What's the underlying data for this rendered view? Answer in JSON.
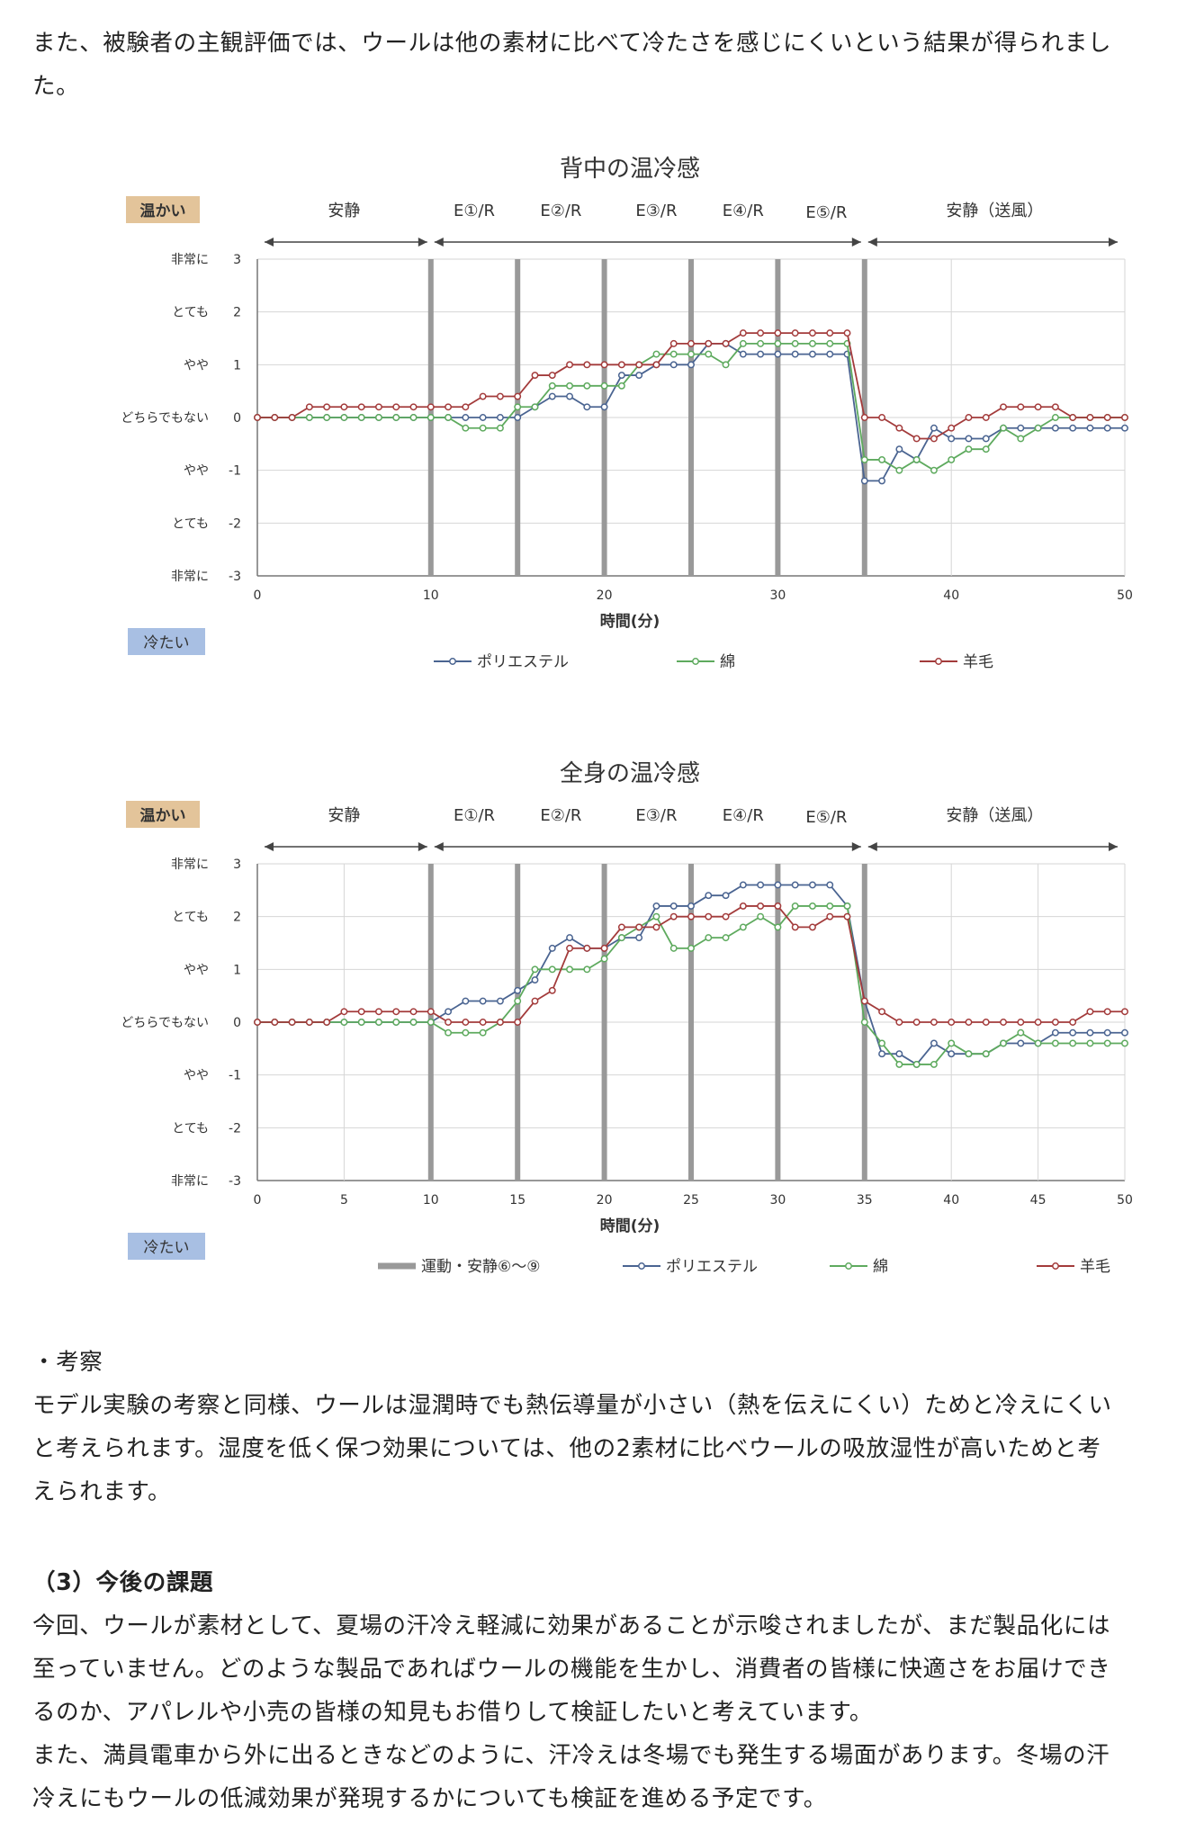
{
  "intro": {
    "lines": [
      "また、被験者の主観評価では、ウールは他の素材に比べて冷たさを感じにくいという結果が得られまし",
      "た。"
    ]
  },
  "scale_labels": {
    "warm_badge": "温かい",
    "cold_badge": "冷たい",
    "levels": [
      "非常に",
      "とても",
      "やや",
      "どちらでもない",
      "やや",
      "とても",
      "非常に"
    ]
  },
  "phases": [
    "安静",
    "E①/R",
    "E②/R",
    "E③/R",
    "E④/R",
    "E⑤/R",
    "安静（送風）"
  ],
  "colors": {
    "polyester": "#4a6491",
    "cotton": "#5eaa5e",
    "wool": "#a33b3b",
    "exercise_bar": "#999999",
    "badge_warm": "#e3c49a",
    "badge_cold": "#a8bfe3"
  },
  "chart_data": [
    {
      "type": "line",
      "title": "背中の温冷感",
      "xlabel": "時間(分)",
      "ylabel": "",
      "xlim": [
        0,
        50
      ],
      "ylim": [
        -3,
        3
      ],
      "xticks": [
        0,
        10,
        20,
        30,
        40,
        50
      ],
      "yticks": [
        3,
        2,
        1,
        0,
        -1,
        -2,
        -3
      ],
      "grid": true,
      "legend_position": "bottom",
      "exercise_markers": [
        10,
        15,
        20,
        25,
        30,
        35
      ],
      "exercise_legend": "",
      "x": [
        0,
        1,
        2,
        3,
        4,
        5,
        6,
        7,
        8,
        9,
        10,
        11,
        12,
        13,
        14,
        15,
        16,
        17,
        18,
        19,
        20,
        21,
        22,
        23,
        24,
        25,
        26,
        27,
        28,
        29,
        30,
        31,
        32,
        33,
        34,
        35,
        36,
        37,
        38,
        39,
        40,
        41,
        42,
        43,
        44,
        45,
        46,
        47,
        48,
        49,
        50
      ],
      "series": [
        {
          "name": "ポリエステル",
          "color_key": "polyester",
          "values": [
            0,
            0,
            0,
            0,
            0,
            0,
            0,
            0,
            0,
            0,
            0,
            0,
            0,
            0,
            0,
            0,
            0.2,
            0.4,
            0.4,
            0.2,
            0.2,
            0.8,
            0.8,
            1.0,
            1.0,
            1.0,
            1.4,
            1.4,
            1.2,
            1.2,
            1.2,
            1.2,
            1.2,
            1.2,
            1.2,
            -1.2,
            -1.2,
            -0.6,
            -0.8,
            -0.2,
            -0.4,
            -0.4,
            -0.4,
            -0.2,
            -0.2,
            -0.2,
            -0.2,
            -0.2,
            -0.2,
            -0.2,
            -0.2
          ]
        },
        {
          "name": "綿",
          "color_key": "cotton",
          "values": [
            0,
            0,
            0,
            0,
            0,
            0,
            0,
            0,
            0,
            0,
            0,
            0,
            -0.2,
            -0.2,
            -0.2,
            0.2,
            0.2,
            0.6,
            0.6,
            0.6,
            0.6,
            0.6,
            1.0,
            1.2,
            1.2,
            1.2,
            1.2,
            1.0,
            1.4,
            1.4,
            1.4,
            1.4,
            1.4,
            1.4,
            1.4,
            -0.8,
            -0.8,
            -1.0,
            -0.8,
            -1.0,
            -0.8,
            -0.6,
            -0.6,
            -0.2,
            -0.4,
            -0.2,
            0,
            0,
            0,
            0,
            0
          ]
        },
        {
          "name": "羊毛",
          "color_key": "wool",
          "values": [
            0,
            0,
            0,
            0.2,
            0.2,
            0.2,
            0.2,
            0.2,
            0.2,
            0.2,
            0.2,
            0.2,
            0.2,
            0.4,
            0.4,
            0.4,
            0.8,
            0.8,
            1.0,
            1.0,
            1.0,
            1.0,
            1.0,
            1.0,
            1.4,
            1.4,
            1.4,
            1.4,
            1.6,
            1.6,
            1.6,
            1.6,
            1.6,
            1.6,
            1.6,
            0,
            0,
            -0.2,
            -0.4,
            -0.4,
            -0.2,
            0,
            0,
            0.2,
            0.2,
            0.2,
            0.2,
            0,
            0,
            0,
            0
          ]
        }
      ]
    },
    {
      "type": "line",
      "title": "全身の温冷感",
      "xlabel": "時間(分)",
      "ylabel": "",
      "xlim": [
        0,
        50
      ],
      "ylim": [
        -3,
        3
      ],
      "xticks": [
        0,
        5,
        10,
        15,
        20,
        25,
        30,
        35,
        40,
        45,
        50
      ],
      "yticks": [
        3,
        2,
        1,
        0,
        -1,
        -2,
        -3
      ],
      "grid": true,
      "legend_position": "bottom",
      "exercise_markers": [
        10,
        15,
        20,
        25,
        30,
        35
      ],
      "exercise_legend": "運動・安静⑥〜⑨",
      "x": [
        0,
        1,
        2,
        3,
        4,
        5,
        6,
        7,
        8,
        9,
        10,
        11,
        12,
        13,
        14,
        15,
        16,
        17,
        18,
        19,
        20,
        21,
        22,
        23,
        24,
        25,
        26,
        27,
        28,
        29,
        30,
        31,
        32,
        33,
        34,
        35,
        36,
        37,
        38,
        39,
        40,
        41,
        42,
        43,
        44,
        45,
        46,
        47,
        48,
        49,
        50
      ],
      "series": [
        {
          "name": "ポリエステル",
          "color_key": "polyester",
          "values": [
            0,
            0,
            0,
            0,
            0,
            0,
            0,
            0,
            0,
            0,
            0,
            0.2,
            0.4,
            0.4,
            0.4,
            0.6,
            0.8,
            1.4,
            1.6,
            1.4,
            1.4,
            1.6,
            1.6,
            2.2,
            2.2,
            2.2,
            2.4,
            2.4,
            2.6,
            2.6,
            2.6,
            2.6,
            2.6,
            2.6,
            2.2,
            0.4,
            -0.6,
            -0.6,
            -0.8,
            -0.4,
            -0.6,
            -0.6,
            -0.6,
            -0.4,
            -0.4,
            -0.4,
            -0.2,
            -0.2,
            -0.2,
            -0.2,
            -0.2
          ]
        },
        {
          "name": "綿",
          "color_key": "cotton",
          "values": [
            0,
            0,
            0,
            0,
            0,
            0,
            0,
            0,
            0,
            0,
            0,
            -0.2,
            -0.2,
            -0.2,
            0,
            0.4,
            1.0,
            1.0,
            1.0,
            1.0,
            1.2,
            1.6,
            1.8,
            2.0,
            1.4,
            1.4,
            1.6,
            1.6,
            1.8,
            2.0,
            1.8,
            2.2,
            2.2,
            2.2,
            2.2,
            0,
            -0.4,
            -0.8,
            -0.8,
            -0.8,
            -0.4,
            -0.6,
            -0.6,
            -0.4,
            -0.2,
            -0.4,
            -0.4,
            -0.4,
            -0.4,
            -0.4,
            -0.4
          ]
        },
        {
          "name": "羊毛",
          "color_key": "wool",
          "values": [
            0,
            0,
            0,
            0,
            0,
            0.2,
            0.2,
            0.2,
            0.2,
            0.2,
            0.2,
            0,
            0,
            0,
            0,
            0,
            0.4,
            0.6,
            1.4,
            1.4,
            1.4,
            1.8,
            1.8,
            1.8,
            2.0,
            2.0,
            2.0,
            2.0,
            2.2,
            2.2,
            2.2,
            1.8,
            1.8,
            2.0,
            2.0,
            0.4,
            0.2,
            0,
            0,
            0,
            0,
            0,
            0,
            0,
            0,
            0,
            0,
            0,
            0.2,
            0.2,
            0.2
          ]
        }
      ]
    }
  ],
  "discussion": {
    "heading": "・考察",
    "lines": [
      "モデル実験の考察と同様、ウールは湿潤時でも熱伝導量が小さい（熱を伝えにくい）ためと冷えにくい",
      "と考えられます。湿度を低く保つ効果については、他の2素材に比べウールの吸放湿性が高いためと考",
      "えられます。"
    ]
  },
  "future": {
    "heading": "（3）今後の課題",
    "lines": [
      "今回、ウールが素材として、夏場の汗冷え軽減に効果があることが示唆されましたが、まだ製品化には",
      "至っていません。どのような製品であればウールの機能を生かし、消費者の皆様に快適さをお届けでき",
      "るのか、アパレルや小売の皆様の知見もお借りして検証したいと考えています。",
      "また、満員電車から外に出るときなどのように、汗冷えは冬場でも発生する場面があります。冬場の汗",
      "冷えにもウールの低減効果が発現するかについても検証を進める予定です。"
    ]
  }
}
